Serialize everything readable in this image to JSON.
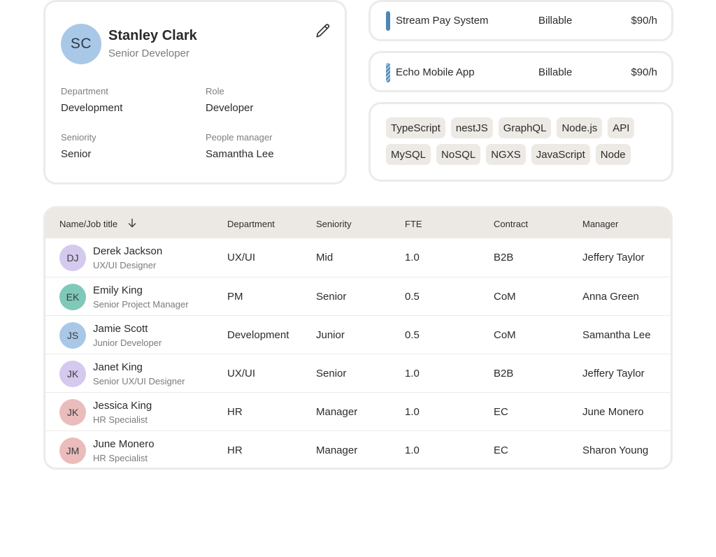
{
  "profile": {
    "initials": "SC",
    "avatar_color": "#a9c8e7",
    "name": "Stanley Clark",
    "title": "Senior Developer",
    "edit_icon": "pencil-icon",
    "fields": {
      "department": {
        "label": "Department",
        "value": "Development"
      },
      "role": {
        "label": "Role",
        "value": "Developer"
      },
      "seniority": {
        "label": "Seniority",
        "value": "Senior"
      },
      "manager": {
        "label": "People manager",
        "value": "Samantha Lee"
      }
    }
  },
  "projects": [
    {
      "name": "Stream Pay System",
      "status": "Billable",
      "rate": "$90/h",
      "bar_color": "#4f86b3"
    },
    {
      "name": "Echo Mobile App",
      "status": "Billable",
      "rate": "$90/h",
      "bar_color": "#4f86b3"
    }
  ],
  "skills": [
    "TypeScript",
    "nestJS",
    "GraphQL",
    "Node.js",
    "API",
    "MySQL",
    "NoSQL",
    "NGXS",
    "JavaScript",
    "Node"
  ],
  "table": {
    "columns": {
      "name": "Name/Job title",
      "department": "Department",
      "seniority": "Seniority",
      "fte": "FTE",
      "contract": "Contract",
      "manager": "Manager"
    },
    "sort_icon": "arrow-down-icon",
    "rows": [
      {
        "initials": "DJ",
        "color": "#d5c9ee",
        "name": "Derek Jackson",
        "job": "UX/UI Designer",
        "department": "UX/UI",
        "seniority": "Mid",
        "fte": "1.0",
        "contract": "B2B",
        "manager": "Jeffery Taylor"
      },
      {
        "initials": "EK",
        "color": "#7fc9b8",
        "name": "Emily King",
        "job": "Senior Project Manager",
        "department": "PM",
        "seniority": "Senior",
        "fte": "0.5",
        "contract": "CoM",
        "manager": "Anna Green"
      },
      {
        "initials": "JS",
        "color": "#a9c8e7",
        "name": "Jamie Scott",
        "job": "Junior Developer",
        "department": "Development",
        "seniority": "Junior",
        "fte": "0.5",
        "contract": "CoM",
        "manager": "Samantha Lee"
      },
      {
        "initials": "JK",
        "color": "#d5c9ee",
        "name": "Janet King",
        "job": "Senior UX/UI Designer",
        "department": "UX/UI",
        "seniority": "Senior",
        "fte": "1.0",
        "contract": "B2B",
        "manager": "Jeffery Taylor"
      },
      {
        "initials": "JK",
        "color": "#ebbcbc",
        "name": "Jessica King",
        "job": "HR Specialist",
        "department": "HR",
        "seniority": "Manager",
        "fte": "1.0",
        "contract": "EC",
        "manager": "June Monero"
      },
      {
        "initials": "JM",
        "color": "#ebbcbc",
        "name": "June Monero",
        "job": "HR Specialist",
        "department": "HR",
        "seniority": "Manager",
        "fte": "1.0",
        "contract": "EC",
        "manager": "Sharon Young"
      }
    ]
  }
}
